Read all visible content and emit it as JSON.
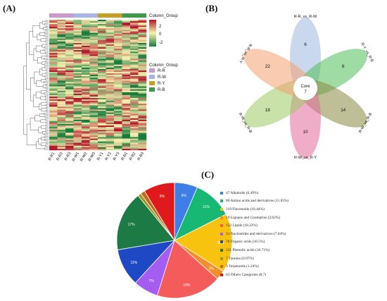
{
  "panels": {
    "a": "(A)",
    "b": "(B)",
    "c": "(C)"
  },
  "heatmap": {
    "column_group_title": "Column_Group",
    "scale_title": "Column_Group",
    "scale_ticks": [
      "2",
      "0",
      "-2"
    ],
    "columns": [
      "R-R1",
      "R-R2",
      "R-R3",
      "R-W1",
      "R-W2",
      "R-W3",
      "R-Y1",
      "R-Y2",
      "R-Y3",
      "R-B1",
      "R-B2",
      "R-B3"
    ],
    "groups": [
      {
        "label": "R-R",
        "color": "#cc99cc"
      },
      {
        "label": "R-W",
        "color": "#a9b4e6"
      },
      {
        "label": "R-Y",
        "color": "#c4a11e"
      },
      {
        "label": "R-B",
        "color": "#3d9a4a"
      }
    ],
    "colors": {
      "high": "#b2182b",
      "mid": "#f6f2b0",
      "low": "#1a7a3c"
    }
  },
  "venn": {
    "core_label": "Core",
    "core_value": "7",
    "petals": [
      {
        "label": "R-R_vs_R-W",
        "value": "6",
        "color": "#9fb8e0"
      },
      {
        "label": "R-Y_vs_R-B",
        "value": "6",
        "color": "#4fc05a"
      },
      {
        "label": "R-W_vs_R-B",
        "value": "14",
        "color": "#8a8a42"
      },
      {
        "label": "R-W_vs_R-Y",
        "value": "10",
        "color": "#e26a9a"
      },
      {
        "label": "R-W_vs_R-B",
        "value": "18",
        "color": "#9acb64"
      },
      {
        "label": "R-R_vs_R-Y",
        "value": "22",
        "color": "#f4a070"
      }
    ]
  },
  "chart_data": {
    "type": "pie",
    "title": "",
    "slices": [
      {
        "count": "47",
        "name": "Alkaloids",
        "pct_text": "(6.49%)",
        "value": 6.49,
        "slice_label": "6%",
        "color": "#3d7fe6"
      },
      {
        "count": "80",
        "name": "Amino acids and derivatives",
        "pct_text": "(11.05%)",
        "value": 11.05,
        "slice_label": "11%",
        "color": "#16b873"
      },
      {
        "count": "119",
        "name": "Flavonoids",
        "pct_text": "(16.44%)",
        "value": 16.44,
        "slice_label": "16%",
        "color": "#f7c30e"
      },
      {
        "count": "19",
        "name": "Lignans and Coumarins",
        "pct_text": "(2.62%)",
        "value": 2.62,
        "slice_label": "3%",
        "color": "#f28e2b"
      },
      {
        "count": "132",
        "name": "Lipids",
        "pct_text": "(18.23%)",
        "value": 18.23,
        "slice_label": "18%",
        "color": "#f45b5b"
      },
      {
        "count": "51",
        "name": "Nucleotides and derivatives",
        "pct_text": "(7.04%)",
        "value": 7.04,
        "slice_label": "7%",
        "color": "#a55cf0"
      },
      {
        "count": "76",
        "name": "Organic acids",
        "pct_text": "(10.5%)",
        "value": 10.5,
        "slice_label": "11%",
        "color": "#1f49c4"
      },
      {
        "count": "121",
        "name": "Phenolic acids",
        "pct_text": "(16.71%)",
        "value": 16.71,
        "slice_label": "17%",
        "color": "#1c7a44"
      },
      {
        "count": "7",
        "name": "Tannins",
        "pct_text": "(0.97%)",
        "value": 0.97,
        "slice_label": "",
        "color": "#9a9a24"
      },
      {
        "count": "9",
        "name": "Terpenoids",
        "pct_text": "(1.24%)",
        "value": 1.24,
        "slice_label": "",
        "color": "#c46a1a"
      },
      {
        "count": "63",
        "name": "Others Categories",
        "pct_text": "(8.7)",
        "value": 8.7,
        "slice_label": "9%",
        "color": "#e01a1a"
      }
    ]
  }
}
